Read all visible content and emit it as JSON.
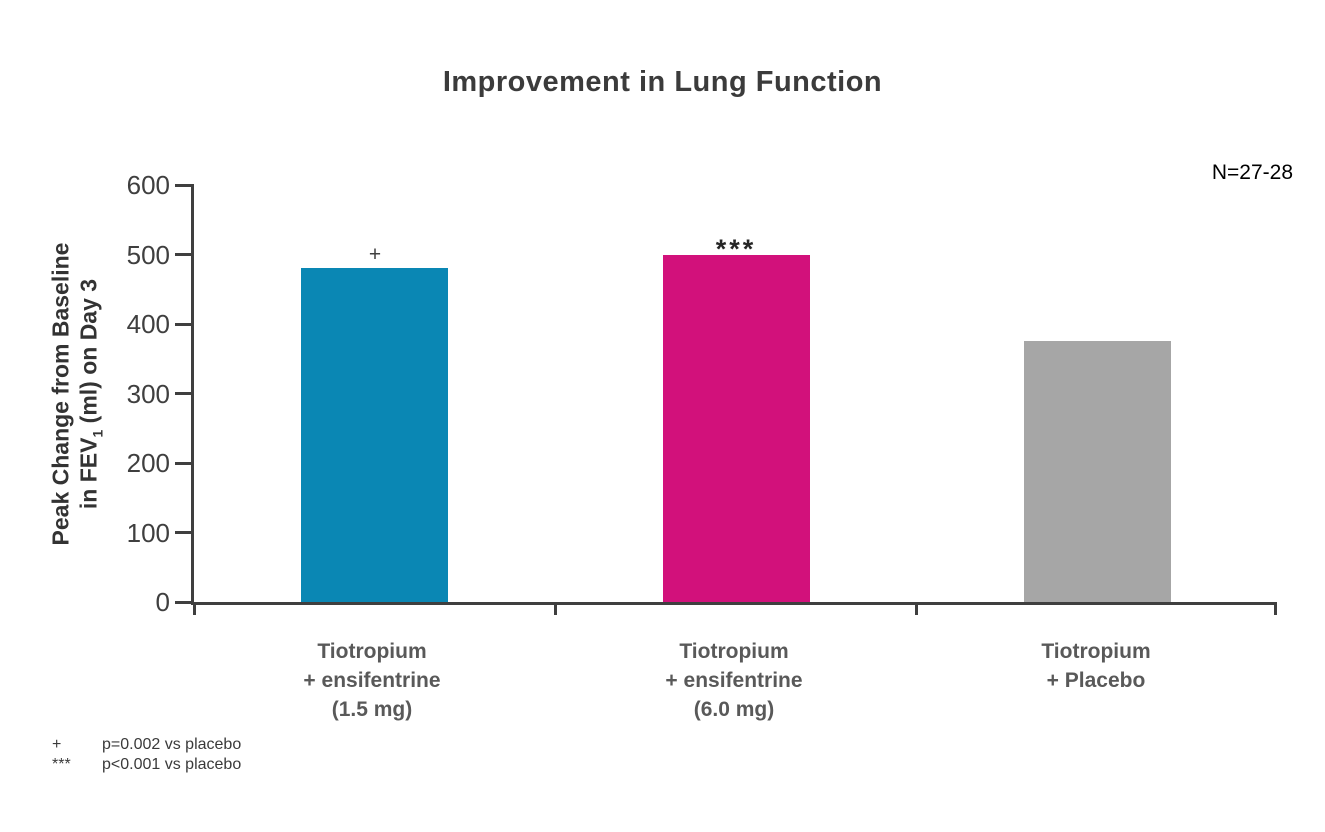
{
  "title": "Improvement in Lung Function",
  "n_annotation": "N=27-28",
  "y_axis": {
    "label_line1": "Peak Change from Baseline",
    "label_line2_pre": "in FEV",
    "label_line2_sub": "1",
    "label_line2_post": " (ml) on Day 3"
  },
  "footnotes": [
    {
      "marker": "+",
      "text": "p=0.002 vs placebo"
    },
    {
      "marker": "***",
      "text": "p<0.001 vs placebo"
    }
  ],
  "chart_data": {
    "type": "bar",
    "title": "Improvement in Lung Function",
    "categories": [
      "Tiotropium\n+ ensifentrine\n(1.5 mg)",
      "Tiotropium\n+ ensifentrine\n(6.0 mg)",
      "Tiotropium\n+ Placebo"
    ],
    "values": [
      480,
      500,
      375
    ],
    "bar_colors": [
      "#0A87B4",
      "#D2117B",
      "#A6A6A6"
    ],
    "significance_markers": [
      "+",
      "***",
      ""
    ],
    "xlabel": "",
    "ylabel": "Peak Change from Baseline in FEV₁ (ml) on Day 3",
    "yticks": [
      0,
      100,
      200,
      300,
      400,
      500,
      600
    ],
    "ylim": [
      0,
      600
    ],
    "grid": false,
    "legend": false,
    "annotation": "N=27-28",
    "axis_color": "#3f3f3f"
  }
}
